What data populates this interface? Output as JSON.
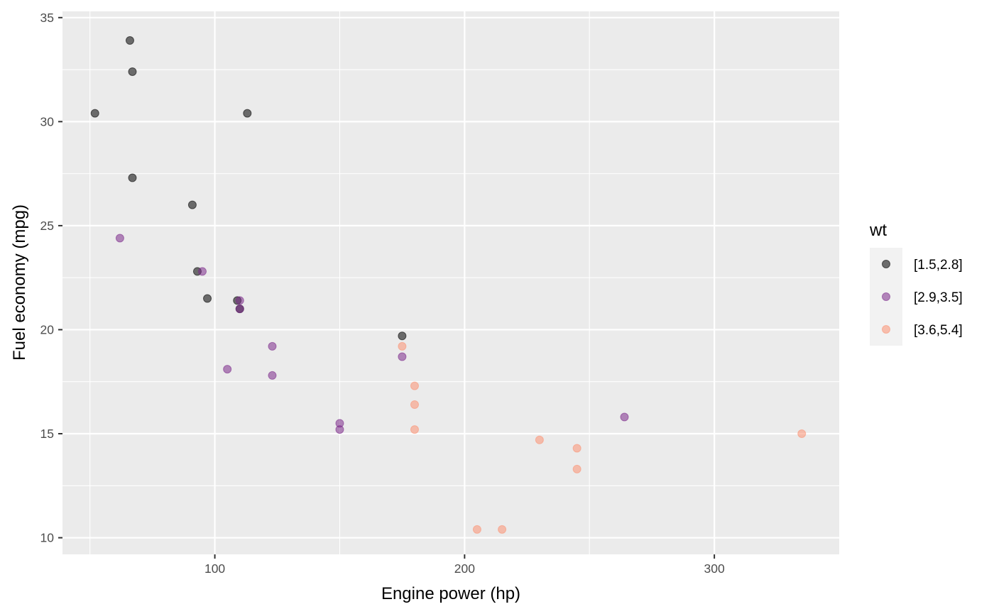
{
  "chart_data": {
    "type": "scatter",
    "title": "",
    "xlabel": "Engine power (hp)",
    "ylabel": "Fuel economy (mpg)",
    "xlim": [
      39,
      350
    ],
    "ylim": [
      9.2,
      35.3
    ],
    "x_ticks": [
      100,
      200,
      300
    ],
    "x_minor_ticks": [
      50,
      150,
      250
    ],
    "y_ticks": [
      10,
      15,
      20,
      25,
      30,
      35
    ],
    "y_minor_ticks": [
      12.5,
      17.5,
      22.5,
      27.5,
      32.5
    ],
    "grid": true,
    "legend_position": "right",
    "legend_title": "wt",
    "series": [
      {
        "name": "[1.5,2.8]",
        "color": "#000000",
        "points": [
          {
            "x": 66,
            "y": 33.9
          },
          {
            "x": 67,
            "y": 32.4
          },
          {
            "x": 52,
            "y": 30.4
          },
          {
            "x": 113,
            "y": 30.4
          },
          {
            "x": 67,
            "y": 27.3
          },
          {
            "x": 91,
            "y": 26.0
          },
          {
            "x": 93,
            "y": 22.8
          },
          {
            "x": 97,
            "y": 21.5
          },
          {
            "x": 109,
            "y": 21.4
          },
          {
            "x": 110,
            "y": 21.0
          },
          {
            "x": 175,
            "y": 19.7
          }
        ]
      },
      {
        "name": "[2.9,3.5]",
        "color": "#7b2a8b",
        "points": [
          {
            "x": 62,
            "y": 24.4
          },
          {
            "x": 95,
            "y": 22.8
          },
          {
            "x": 110,
            "y": 21.4
          },
          {
            "x": 110,
            "y": 21.0
          },
          {
            "x": 123,
            "y": 19.2
          },
          {
            "x": 105,
            "y": 18.1
          },
          {
            "x": 123,
            "y": 17.8
          },
          {
            "x": 175,
            "y": 18.7
          },
          {
            "x": 150,
            "y": 15.5
          },
          {
            "x": 150,
            "y": 15.2
          },
          {
            "x": 264,
            "y": 15.8
          }
        ]
      },
      {
        "name": "[3.6,5.4]",
        "color": "#fc9272",
        "points": [
          {
            "x": 175,
            "y": 19.2
          },
          {
            "x": 180,
            "y": 17.3
          },
          {
            "x": 180,
            "y": 16.4
          },
          {
            "x": 180,
            "y": 15.2
          },
          {
            "x": 230,
            "y": 14.7
          },
          {
            "x": 245,
            "y": 14.3
          },
          {
            "x": 245,
            "y": 13.3
          },
          {
            "x": 205,
            "y": 10.4
          },
          {
            "x": 215,
            "y": 10.4
          },
          {
            "x": 335,
            "y": 15.0
          }
        ]
      }
    ]
  }
}
